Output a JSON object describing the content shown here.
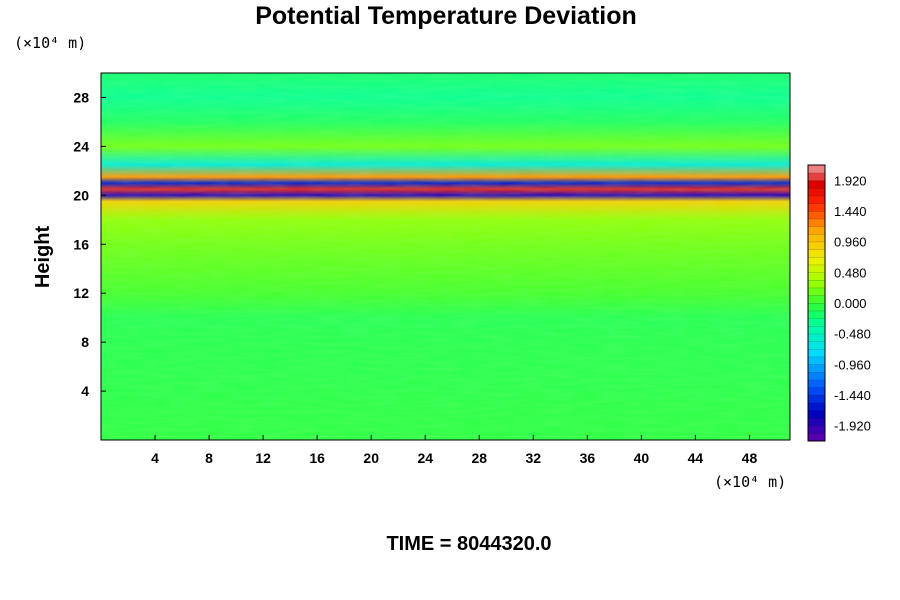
{
  "chart_data": {
    "type": "heatmap",
    "title": "Potential Temperature Deviation",
    "ylabel": "Height",
    "x_unit_label": "(×10⁴ m)",
    "y_unit_label": "(×10⁴ m)",
    "xlim": [
      0,
      51
    ],
    "ylim": [
      0,
      30
    ],
    "x_ticks": [
      4,
      8,
      12,
      16,
      20,
      24,
      28,
      32,
      36,
      40,
      44,
      48
    ],
    "y_ticks": [
      4,
      8,
      12,
      16,
      20,
      24,
      28
    ],
    "colorbar": {
      "min": -2.16,
      "max": 2.16,
      "step": 0.12,
      "tick_values": [
        -1.92,
        -1.44,
        -0.96,
        -0.48,
        0.0,
        0.48,
        0.96,
        1.44,
        1.92
      ],
      "tick_labels": [
        "-1.920",
        "-1.440",
        "-0.960",
        "-0.480",
        "0.000",
        "0.480",
        "0.960",
        "1.440",
        "1.920"
      ]
    },
    "vertical_profile": [
      {
        "y": 0,
        "value": -0.05
      },
      {
        "y": 10,
        "value": -0.1
      },
      {
        "y": 12,
        "value": 0.05
      },
      {
        "y": 16,
        "value": 0.2
      },
      {
        "y": 18,
        "value": 0.3
      },
      {
        "y": 19.5,
        "value": 0.9
      },
      {
        "y": 20,
        "value": -1.9
      },
      {
        "y": 20.5,
        "value": 1.92
      },
      {
        "y": 21,
        "value": -1.6
      },
      {
        "y": 21.5,
        "value": 1.2
      },
      {
        "y": 22.5,
        "value": -0.6
      },
      {
        "y": 24,
        "value": 0.2
      },
      {
        "y": 26,
        "value": -0.15
      },
      {
        "y": 28,
        "value": -0.3
      },
      {
        "y": 30,
        "value": -0.2
      }
    ],
    "colors": {
      "background_field": "#33ff33",
      "high_end": "#f0a0a0",
      "low_end": "#6600aa"
    }
  },
  "footer": {
    "time_label": "TIME = 8044320.0"
  }
}
